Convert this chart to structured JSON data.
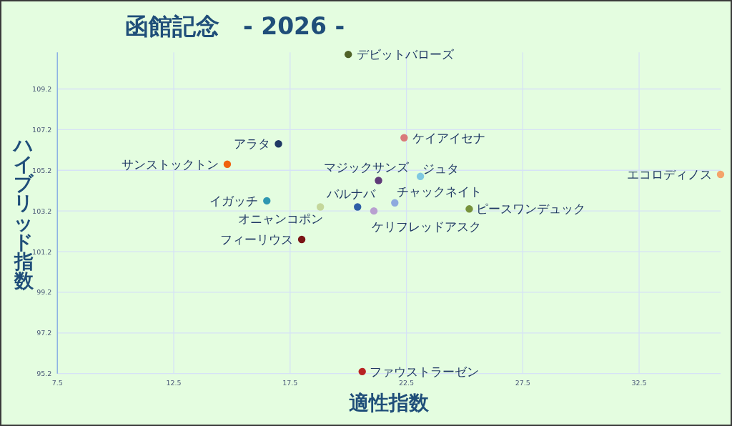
{
  "chart_data": {
    "type": "scatter",
    "title": "函館記念　- 2026 -",
    "xlabel": "適性指数",
    "ylabel": "ハイブリッド指数",
    "xlim": [
      7.5,
      36
    ],
    "ylim": [
      95.2,
      111
    ],
    "xticks": [
      7.5,
      12.5,
      17.5,
      22.5,
      27.5,
      32.5
    ],
    "yticks": [
      95.2,
      97.2,
      99.2,
      101.2,
      103.2,
      105.2,
      107.2,
      109.2
    ],
    "grid": true,
    "marker": "circle",
    "series": [
      {
        "name": "デビットバローズ",
        "color": "#4f6228",
        "x": [
          20.0
        ],
        "values": [
          110.9
        ]
      },
      {
        "name": "アラタ",
        "color": "#1f3864",
        "x": [
          17.0
        ],
        "values": [
          106.5
        ]
      },
      {
        "name": "サンストックトン",
        "color": "#f0620f",
        "x": [
          14.8
        ],
        "values": [
          105.5
        ]
      },
      {
        "name": "イガッチ",
        "color": "#2e97b1",
        "x": [
          16.5
        ],
        "values": [
          103.7
        ]
      },
      {
        "name": "オニャンコポン",
        "color": "#c4d79b",
        "x": [
          18.8
        ],
        "values": [
          103.4
        ]
      },
      {
        "name": "バルナバ",
        "color": "#2e5fa6",
        "x": [
          20.4
        ],
        "values": [
          103.4
        ]
      },
      {
        "name": "フィーリウス",
        "color": "#7b1515",
        "x": [
          18.0
        ],
        "values": [
          101.8
        ]
      },
      {
        "name": "ファウストラーゼン",
        "color": "#b82323",
        "x": [
          20.6
        ],
        "values": [
          95.3
        ]
      },
      {
        "name": "ケイアイセナ",
        "color": "#d97a7a",
        "x": [
          22.4
        ],
        "values": [
          106.8
        ]
      },
      {
        "name": "マジックサンズ",
        "color": "#5f3a78",
        "x": [
          21.3
        ],
        "values": [
          104.7
        ]
      },
      {
        "name": "ジュタ",
        "color": "#7fc8e0",
        "x": [
          23.1
        ],
        "values": [
          104.9
        ]
      },
      {
        "name": "エコロディノス",
        "color": "#f4a46a",
        "x": [
          36.0
        ],
        "values": [
          105.0
        ]
      },
      {
        "name": "チャックネイト",
        "color": "#8eaade",
        "x": [
          22.0
        ],
        "values": [
          103.6
        ]
      },
      {
        "name": "ケリフレッドアスク",
        "color": "#b8a0d0",
        "x": [
          21.1
        ],
        "values": [
          103.2
        ]
      },
      {
        "name": "ピースワンデュック",
        "color": "#77933c",
        "x": [
          25.2
        ],
        "values": [
          103.3
        ]
      }
    ]
  }
}
